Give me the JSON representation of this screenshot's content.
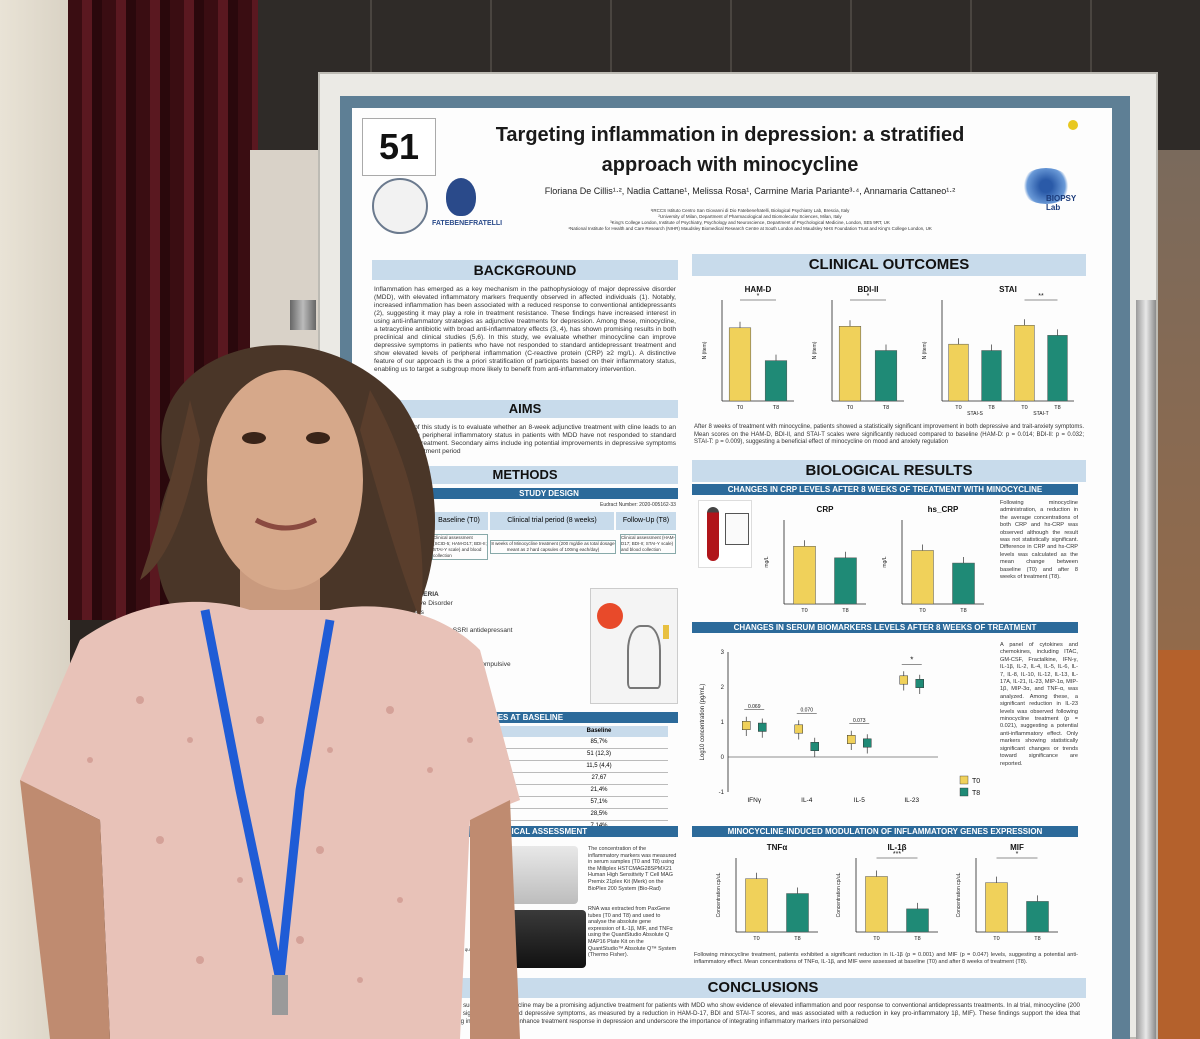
{
  "poster": {
    "number": "51",
    "title_line1": "Targeting inflammation in depression: a stratified",
    "title_line2": "approach with minocycline",
    "authors": "Floriana De Cillis¹·², Nadia Cattane¹, Melissa Rosa¹, Carmine Maria Pariante³·⁴, Annamaria Cattaneo¹·²",
    "affiliations": [
      "¹IRCCS Istituto Centro San Giovanni di Dio Fatebenefratelli, Biological Psychiatry Lab, Brescia, Italy",
      "²University of Milan, Department of Pharmacological and Biomolecular Sciences, Milan, Italy",
      "³King's College London, Institute of Psychiatry, Psychology and Neuroscience, Department of Psychological Medicine, London, SE5 9RT, UK",
      "⁴National Institute for Health and Care Research (NIHR) Maudsley Biomedical Research Centre at South London and Maudsley NHS Foundation Trust and King's College London, UK"
    ],
    "logo_fbf": "FATEBENEFRATELLI",
    "logo_biopsy": "BIOPSY Lab",
    "background": {
      "heading": "BACKGROUND",
      "text": "Inflammation has emerged as a key mechanism in the pathophysiology of major depressive disorder (MDD), with elevated inflammatory markers frequently observed in affected individuals (1). Notably, increased inflammation has been associated with a reduced response to conventional antidepressants (2), suggesting it may play a role in treatment resistance. These findings have increased interest in using anti-inflammatory strategies as adjunctive treatments for depression. Among these, minocycline, a tetracycline antibiotic with broad anti-inflammatory effects (3, 4), has shown promising results in both preclinical and clinical studies (5,6). In this study, we evaluate whether minocycline can improve depressive symptoms in patients who have not responded to standard antidepressant treatment and show elevated levels of peripheral inflammation (C-reactive protein (CRP) ≥2 mg/L). A distinctive feature of our approach is the a priori stratification of participants based on their inflammatory status, enabling us to target a subgroup more likely to benefit from anti-inflammatory intervention."
    },
    "aims": {
      "heading": "AIMS",
      "text": "primary aims of this study is to evaluate whether an 8-week adjunctive treatment with cline leads to an improvement in peripheral inflammatory status in patients with MDD have not responded to standard antidepressant treatment. Secondary aims include ing potential improvements in depressive symptoms following the treatment period"
    },
    "methods": {
      "heading": "METHODS",
      "study_design": "STUDY DESIGN",
      "eudract": "Eudract Number: 2020-005162-33",
      "phase_baseline": "Baseline (T0)",
      "phase_trial": "Clinical trial period (8 weeks)",
      "phase_follow": "Follow-Up (T8)",
      "baseline_desc": "Clinical assessment (SCID-5; HAM-D17; BDI-II; STAI-Y scale) and blood collection",
      "trial_desc": "8 weeks of Minocycline treatment (200 mg/die as total dosage meant as 2 hard capsules of 100mg each/day)",
      "follow_desc": "Clinical assessment (HAM-D17; BDI-II; STAI-Y scale) and blood collection",
      "criteria_title": "CRITERIA",
      "criteria": [
        "essive Disorder",
        "years",
        "≥ 2 mg/L",
        "no response to SSRI antidepressant",
        "idepressant",
        "olar disorder, obsessive compulsive",
        "racycline",
        "acute infection or other"
      ],
      "variables_title": "AL VARIABLES AT BASELINE",
      "variables_col": "Baseline",
      "variables_rows": [
        {
          "label": "",
          "value": "85,7%"
        },
        {
          "label": "SD)",
          "value": "51 (12,3)"
        },
        {
          "label": "D)",
          "value": "11,5 (4,4)"
        },
        {
          "label": "",
          "value": "27,67"
        },
        {
          "label": "",
          "value": "21,4%"
        },
        {
          "label": "",
          "value": "57,1%"
        },
        {
          "label": "",
          "value": "28,5%"
        },
        {
          "label": "",
          "value": "7,14%"
        }
      ],
      "bio_assessment": "BIOLOGICAL ASSESSMENT",
      "bio_text1": "The concentration of the inflammatory markers was measured in serum samples (T0 and T8) using the Milliplex HSTCMAG28SPMX21 Human High Sensitivity T Cell MAG Premix 21plex Kit (Merk) on the BioPlex 200 System (Bio-Rad)",
      "bio_text2": "RNA was extracted from PaxGene tubes (T0 and T8) and used to analyse the absolute gene expression of IL-1β, MIF, and TNFα using the QuantStudio Absolute Q MAP16 Plate Kit on the QuantStudio™ Absolute Q™ System (Thermo Fisher).",
      "abs_quant": "Absolute quantification"
    },
    "clinical": {
      "heading": "CLINICAL OUTCOMES",
      "text": "After 8 weeks of treatment with minocycline, patients showed a statistically significant improvement in both depressive and trait-anxiety symptoms. Mean scores on the HAM-D, BDI-II, and STAI-T scales were significantly reduced compared to baseline (HAM-D: p = 0.014; BDI-II: p = 0.032; STAI-T: p = 0.009), suggesting a beneficial effect of minocycline on mood and anxiety regulation"
    },
    "biological": {
      "heading": "BIOLOGICAL RESULTS",
      "crp_sub": "CHANGES IN CRP LEVELS AFTER 8 WEEKS OF TREATMENT WITH MINOCYCLINE",
      "crp_text": "Following minocycline administration, a reduction in the average concentrations of both CRP and hs-CRP was observed although the result was not statistically significant. Difference in CRP and hs-CRP levels was calculated as the mean change between baseline (T0) and after 8 weeks of treatment (T8).",
      "serum_sub": "CHANGES IN SERUM BIOMARKERS LEVELS AFTER 8 WEEKS OF TREATMENT",
      "serum_text": "A panel of cytokines and chemokines, including ITAC, GM-CSF, Fractalkine, IFN-γ, IL-1β, IL-2, IL-4, IL-5, IL-6, IL-7, IL-8, IL-10, IL-12, IL-13, IL-17A, IL-21, IL-23, MIP-1α, MIP-1β, MIP-3α, and TNF-α, was analyzed. Among these, a significant reduction in IL-23 levels was observed following minocycline treatment (p = 0.021), suggesting a potential anti-inflammatory effect. Only markers showing statistically significant changes or trends toward significance are reported.",
      "genes_sub": "MINOCYCLINE-INDUCED MODULATION OF INFLAMMATORY GENES EXPRESSION",
      "genes_text": "Following minocycline treatment, patients exhibited a significant reduction in IL-1β (p = 0.001) and MIF (p = 0.047) levels, suggesting a potential anti-inflammatory effect. Mean concentrations of TNFα, IL-1β, and MIF were assessed at baseline (T0) and after 8 weeks of treatment (T8)."
    },
    "conclusions": {
      "heading": "CONCLUSIONS",
      "text": "findings suggest that minocycline may be a promising adjunctive treatment for patients with MDD who show evidence of elevated inflammation and poor response to conventional antidepressants treatments. In al trial, minocycline (200 mg/die) significantly improved depressive symptoms, as measured by a reduction in HAM-D-17, BDI and STAI-T scores, and was associated with a reduction in key pro-inflammatory 1β, MIF). These findings support the idea that targeting inflammation may enhance treatment response in depression and underscore the importance of integrating inflammatory markers into personalized"
    }
  },
  "colors": {
    "t0": "#f0d15a",
    "t8": "#1f8a76",
    "header_bg": "#c8dbeb",
    "subheader_bg": "#2c6a9a"
  },
  "chart_data": [
    {
      "type": "bar",
      "title": "HAM-D",
      "categories": [
        "T0",
        "T8"
      ],
      "values": [
        14.5,
        8
      ],
      "ylabel": "N (item)",
      "ylim": [
        0,
        20
      ],
      "significance": "*"
    },
    {
      "type": "bar",
      "title": "BDI-II",
      "categories": [
        "T0",
        "T8"
      ],
      "values": [
        18.5,
        12.5
      ],
      "ylabel": "N (item)",
      "ylim": [
        0,
        25
      ],
      "significance": "*"
    },
    {
      "type": "bar",
      "title": "STAI",
      "categories": [
        "STAI-S T0",
        "STAI-S T8",
        "STAI-T T0",
        "STAI-T T8"
      ],
      "values": [
        45,
        40,
        60,
        52
      ],
      "ylabel": "N (item)",
      "ylim": [
        0,
        80
      ],
      "group_labels": [
        "STAI-S",
        "STAI-T"
      ],
      "significance": "**"
    },
    {
      "type": "bar",
      "title": "CRP",
      "categories": [
        "T0",
        "T8"
      ],
      "values": [
        5.5,
        4.4
      ],
      "ylabel": "mg/L",
      "ylim": [
        0,
        8
      ]
    },
    {
      "type": "bar",
      "title": "hs_CRP",
      "categories": [
        "T0",
        "T8"
      ],
      "values": [
        5.1,
        3.9
      ],
      "ylabel": "mg/L",
      "ylim": [
        0,
        8
      ]
    },
    {
      "type": "box",
      "title": "",
      "categories": [
        "IFNγ",
        "IL-4",
        "IL-5",
        "IL-23"
      ],
      "series": [
        {
          "name": "T0",
          "values": [
            0.9,
            0.8,
            0.5,
            2.2
          ]
        },
        {
          "name": "T8",
          "values": [
            0.85,
            0.3,
            0.4,
            2.1
          ]
        }
      ],
      "ylabel": "Log10 concentration (pg/mL)",
      "ylim": [
        -1,
        3
      ],
      "p_labels": [
        "0.069",
        "0.070",
        "0.073",
        "*"
      ],
      "legend": [
        "T0",
        "T8"
      ]
    },
    {
      "type": "bar",
      "title": "TNFα",
      "categories": [
        "T0",
        "T8"
      ],
      "values": [
        18,
        13
      ],
      "ylabel": "Concentration cp/uL",
      "ylim": [
        0,
        25
      ]
    },
    {
      "type": "bar",
      "title": "IL-1β",
      "categories": [
        "T0",
        "T8"
      ],
      "values": [
        60,
        25
      ],
      "ylabel": "Concentration cp/uL",
      "ylim": [
        0,
        80
      ],
      "significance": "***"
    },
    {
      "type": "bar",
      "title": "MIF",
      "categories": [
        "T0",
        "T8"
      ],
      "values": [
        100,
        62
      ],
      "ylabel": "Concentration cp/uL",
      "ylim": [
        0,
        150
      ],
      "significance": "*"
    }
  ]
}
